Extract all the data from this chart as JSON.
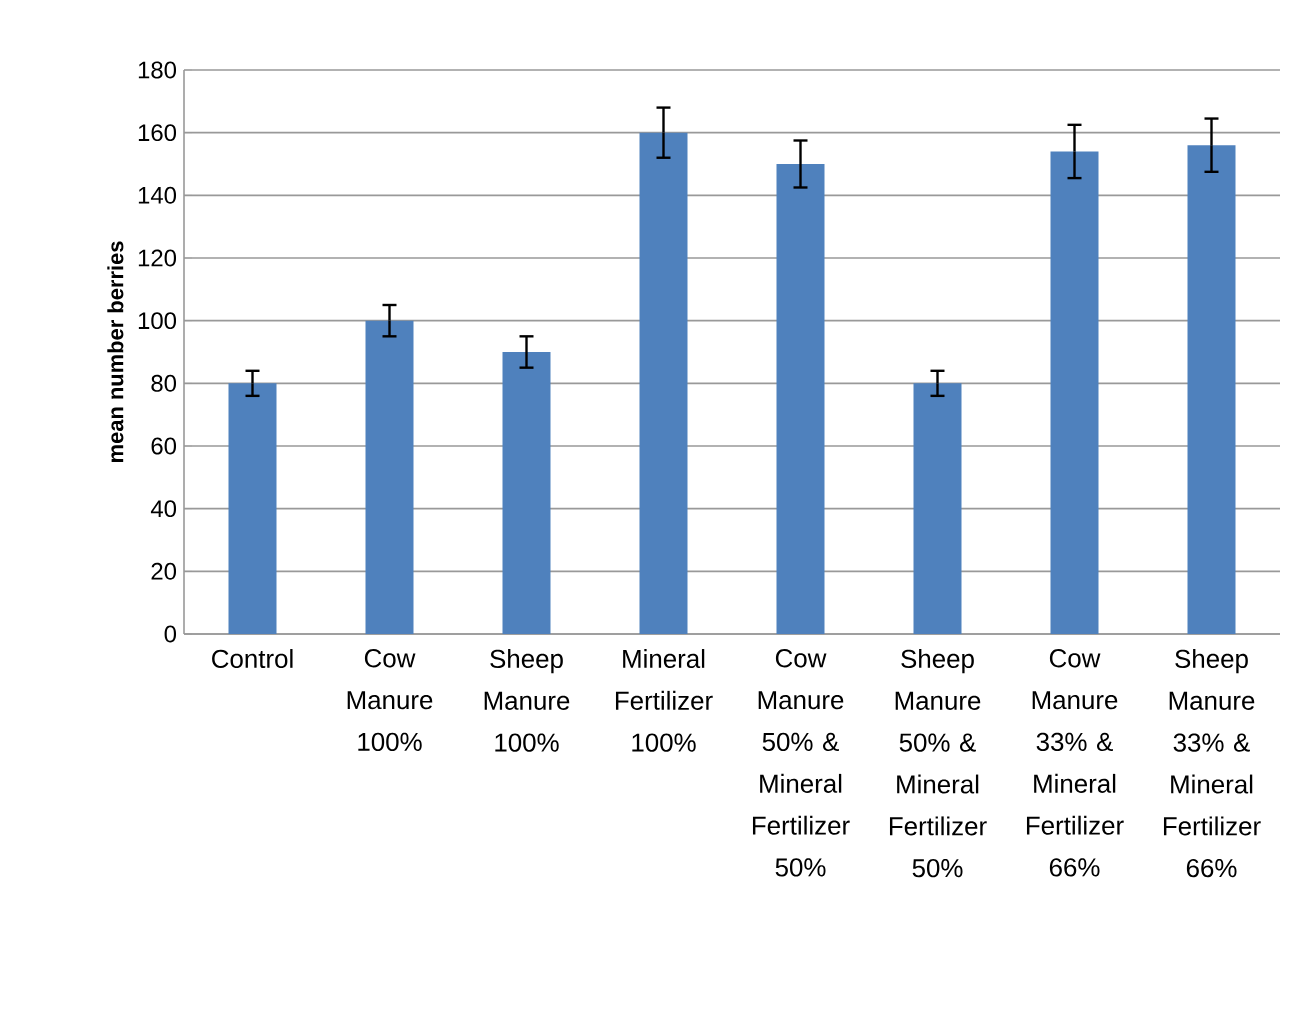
{
  "chart_data": {
    "type": "bar",
    "ylabel": "**mean number berries**",
    "categories": [
      "Control",
      "Cow Manure 100%",
      "Sheep Manure 100%",
      "Mineral Fertilizer 100%",
      "Cow Manure 50% & Mineral Fertilizer 50%",
      "Sheep Manure 50% & Mineral Fertilizer 50%",
      "Cow Manure 33% & Mineral Fertilizer 66%",
      "Sheep Manure 33% & Mineral Fertilizer 66%"
    ],
    "values": [
      80,
      100,
      90,
      160,
      150,
      80,
      154,
      156
    ],
    "errors": [
      4,
      5,
      5,
      8,
      7.5,
      4,
      8.5,
      8.5
    ],
    "color": "#4f81bd",
    "ylim": [
      0,
      180
    ],
    "yticks": [
      0,
      20,
      40,
      60,
      80,
      100,
      120,
      140,
      160,
      180
    ],
    "grid": "y"
  }
}
